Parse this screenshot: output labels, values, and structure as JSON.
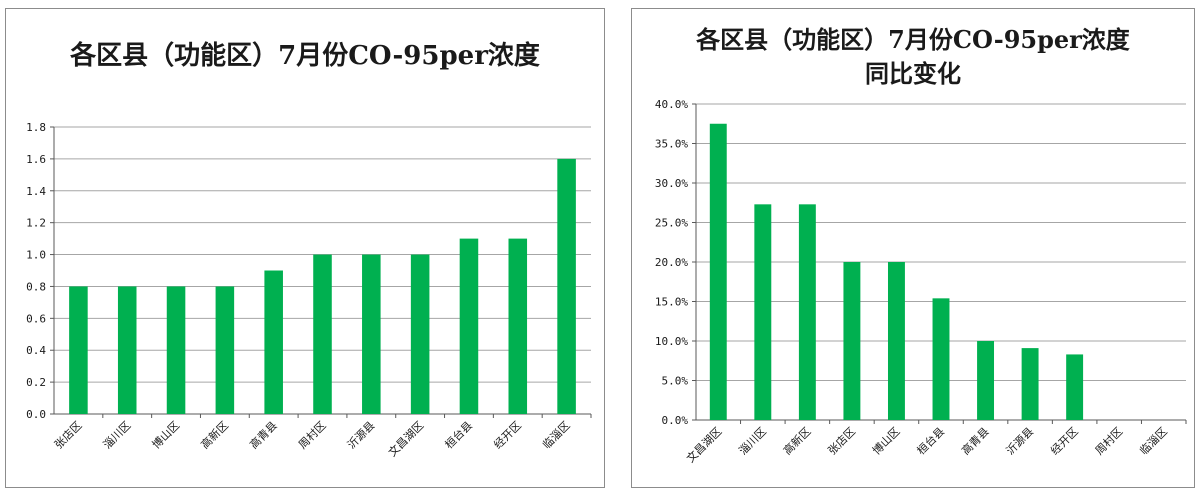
{
  "chart_data": [
    {
      "type": "bar",
      "title": "各区县（功能区）7月份CO-95per浓度",
      "categories": [
        "张店区",
        "淄川区",
        "博山区",
        "高新区",
        "高青县",
        "周村区",
        "沂源县",
        "文昌湖区",
        "桓台县",
        "经开区",
        "临淄区"
      ],
      "values": [
        0.8,
        0.8,
        0.8,
        0.8,
        0.9,
        1.0,
        1.0,
        1.0,
        1.1,
        1.1,
        1.6
      ],
      "ylim": [
        0,
        1.8
      ],
      "yticks": [
        "0.0",
        "0.2",
        "0.4",
        "0.6",
        "0.8",
        "1.0",
        "1.2",
        "1.4",
        "1.6",
        "1.8"
      ],
      "grid": true,
      "bar_color": "#00b050"
    },
    {
      "type": "bar",
      "title": [
        "各区县（功能区）7月份CO-95per浓度",
        "同比变化"
      ],
      "categories": [
        "文昌湖区",
        "淄川区",
        "高新区",
        "张店区",
        "博山区",
        "桓台县",
        "高青县",
        "沂源县",
        "经开区",
        "周村区",
        "临淄区"
      ],
      "values": [
        37.5,
        27.3,
        27.3,
        20.0,
        20.0,
        15.4,
        10.0,
        9.1,
        8.3,
        0,
        0
      ],
      "ylim": [
        0,
        40
      ],
      "yticks": [
        "0.0%",
        "5.0%",
        "10.0%",
        "15.0%",
        "20.0%",
        "25.0%",
        "30.0%",
        "35.0%",
        "40.0%"
      ],
      "grid": true,
      "bar_color": "#00b050"
    }
  ]
}
